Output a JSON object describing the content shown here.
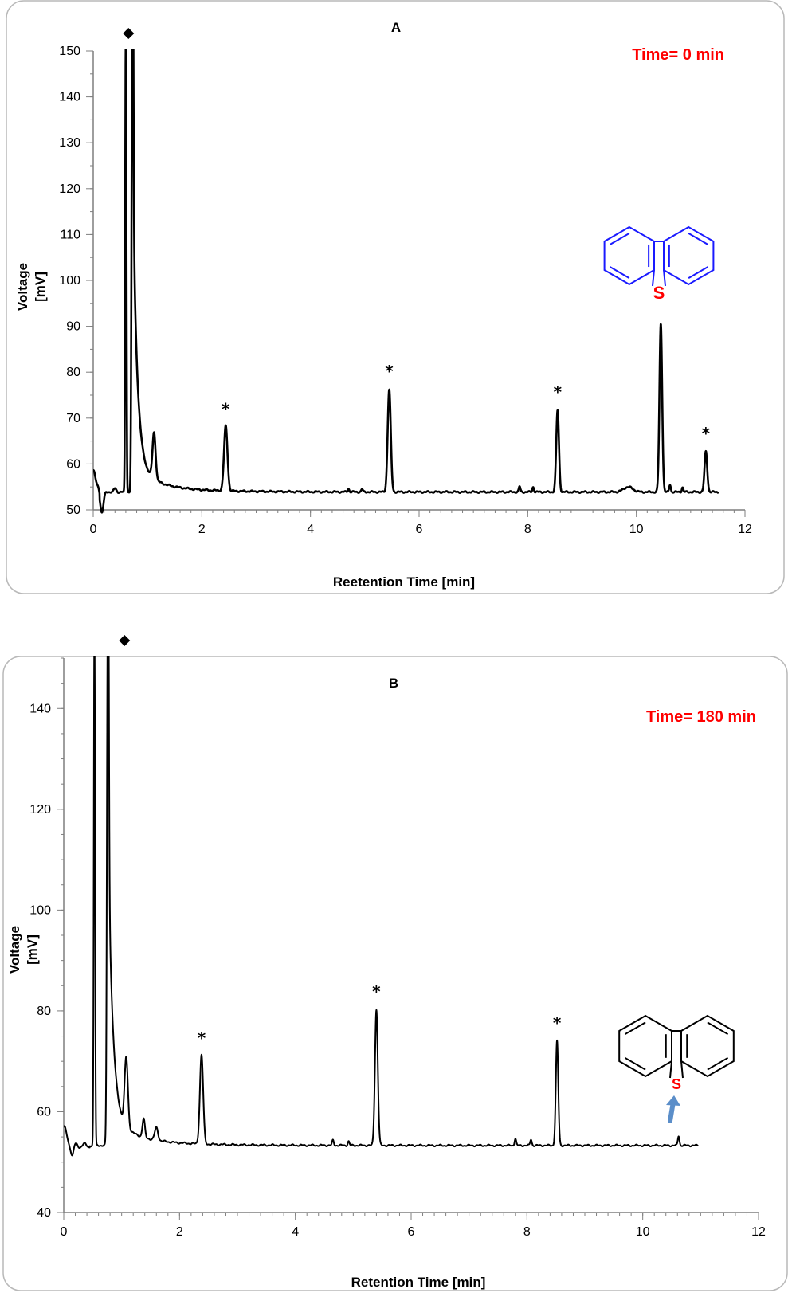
{
  "chart_data": [
    {
      "panel": "A",
      "type": "line",
      "time_label": "Time= 0 min",
      "xlabel": "Reetention Time [min]",
      "ylabel_line1": "Voltage",
      "ylabel_line2": "[mV]",
      "xlim": [
        0,
        12
      ],
      "ylim": [
        50,
        150
      ],
      "x_ticks": [
        "0",
        "2",
        "4",
        "6",
        "8",
        "10",
        "12"
      ],
      "y_ticks": [
        "50",
        "60",
        "70",
        "80",
        "90",
        "100",
        "110",
        "120",
        "130",
        "140",
        "150"
      ],
      "baseline": 53.9,
      "marker_symbol": "◆",
      "marker_x": 0.65,
      "peak_marker": "*",
      "peaks": [
        {
          "x": 0.6,
          "height": 154,
          "width": 0.015,
          "labeled": false
        },
        {
          "x": 0.72,
          "height": 154,
          "width": 0.02,
          "labeled": false
        },
        {
          "x": 1.12,
          "height": 64,
          "width": 0.04,
          "labeled": false
        },
        {
          "x": 2.44,
          "height": 68,
          "width": 0.045,
          "labeled": true
        },
        {
          "x": 4.7,
          "height": 54.6,
          "width": 0.02,
          "labeled": false
        },
        {
          "x": 4.95,
          "height": 54.5,
          "width": 0.02,
          "labeled": false
        },
        {
          "x": 5.45,
          "height": 76.2,
          "width": 0.04,
          "labeled": true
        },
        {
          "x": 7.85,
          "height": 55.1,
          "width": 0.02,
          "labeled": false
        },
        {
          "x": 8.1,
          "height": 55.0,
          "width": 0.02,
          "labeled": false
        },
        {
          "x": 8.55,
          "height": 71.7,
          "width": 0.035,
          "labeled": true
        },
        {
          "x": 9.85,
          "height": 55.0,
          "width": 0.12,
          "labeled": false
        },
        {
          "x": 10.45,
          "height": 90.5,
          "width": 0.035,
          "labeled": false
        },
        {
          "x": 10.62,
          "height": 55.5,
          "width": 0.02,
          "labeled": false
        },
        {
          "x": 10.85,
          "height": 54.9,
          "width": 0.02,
          "labeled": false
        },
        {
          "x": 11.28,
          "height": 62.7,
          "width": 0.035,
          "labeled": true
        }
      ],
      "structure": {
        "atom": "S",
        "ring_color": "#1a1aff",
        "atom_color": "#ff0000",
        "arrow": false
      }
    },
    {
      "panel": "B",
      "type": "line",
      "time_label": "Time= 180 min",
      "xlabel": "Retention Time [min]",
      "ylabel_line1": "Voltage",
      "ylabel_line2": "[mV]",
      "xlim": [
        0,
        12
      ],
      "ylim": [
        40,
        150
      ],
      "x_ticks": [
        "0",
        "2",
        "4",
        "6",
        "8",
        "10",
        "12"
      ],
      "y_ticks": [
        "40",
        "60",
        "80",
        "100",
        "120",
        "140"
      ],
      "baseline": 53.3,
      "marker_symbol": "◆",
      "marker_x": 1.05,
      "peak_marker": "*",
      "peaks": [
        {
          "x": 0.53,
          "height": 160,
          "width": 0.015,
          "labeled": false
        },
        {
          "x": 0.76,
          "height": 160,
          "width": 0.02,
          "labeled": false
        },
        {
          "x": 1.08,
          "height": 67,
          "width": 0.04,
          "labeled": false
        },
        {
          "x": 1.38,
          "height": 57,
          "width": 0.03,
          "labeled": false
        },
        {
          "x": 1.6,
          "height": 55.8,
          "width": 0.04,
          "labeled": false
        },
        {
          "x": 2.38,
          "height": 71,
          "width": 0.04,
          "labeled": true
        },
        {
          "x": 4.65,
          "height": 54.3,
          "width": 0.02,
          "labeled": false
        },
        {
          "x": 4.92,
          "height": 54.1,
          "width": 0.02,
          "labeled": false
        },
        {
          "x": 5.4,
          "height": 80.2,
          "width": 0.035,
          "labeled": true
        },
        {
          "x": 7.8,
          "height": 54.7,
          "width": 0.02,
          "labeled": false
        },
        {
          "x": 8.07,
          "height": 54.5,
          "width": 0.02,
          "labeled": false
        },
        {
          "x": 8.52,
          "height": 74,
          "width": 0.03,
          "labeled": true
        },
        {
          "x": 10.62,
          "height": 55.2,
          "width": 0.02,
          "labeled": false
        }
      ],
      "structure": {
        "atom": "S",
        "ring_color": "#000000",
        "atom_color": "#ff0000",
        "arrow": true,
        "arrow_color": "#5b8ec9"
      }
    }
  ]
}
